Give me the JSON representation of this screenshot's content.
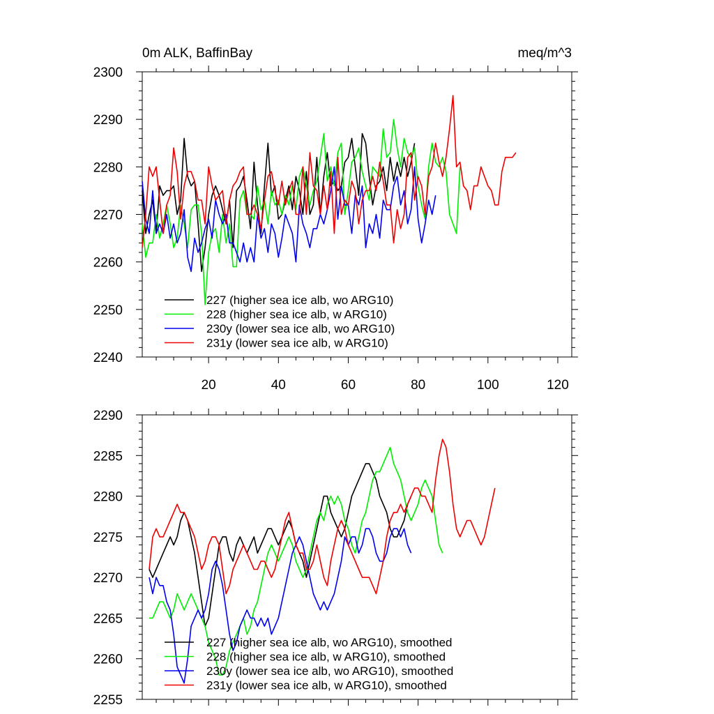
{
  "chart_data": [
    {
      "type": "line",
      "title_left": "0m ALK, BaffinBay",
      "title_right": "meq/m^3",
      "xlim": [
        1,
        124
      ],
      "ylim": [
        2240,
        2300
      ],
      "yticks": [
        2240,
        2250,
        2260,
        2270,
        2280,
        2290,
        2300
      ],
      "xticks": [
        20,
        40,
        60,
        80,
        100,
        120
      ],
      "xtick_labels_visible": true,
      "series": [
        {
          "name": "227 (higher sea ice alb, wo ARG10)",
          "color": "#000000",
          "x_start": 1,
          "values": [
            2275,
            2266,
            2270,
            2273,
            2266,
            2276,
            2274,
            2275,
            2275,
            2276,
            2270,
            2273,
            2286,
            2278,
            2276,
            2277,
            2268,
            2258,
            2263,
            2270,
            2274,
            2276,
            2274,
            2271,
            2268,
            2273,
            2263,
            2275,
            2276,
            2278,
            2273,
            2267,
            2281,
            2272,
            2266,
            2276,
            2285,
            2274,
            2276,
            2269,
            2270,
            2273,
            2276,
            2271,
            2278,
            2275,
            2270,
            2279,
            2270,
            2272,
            2282,
            2270,
            2278,
            2283,
            2276,
            2277,
            2275,
            2276,
            2281,
            2282,
            2286,
            2280,
            2274,
            2287,
            2285,
            2278,
            2272,
            2276,
            2277,
            2280,
            2275,
            2282,
            2277,
            2281,
            2278,
            2282,
            2278,
            2281,
            2285
          ]
        },
        {
          "name": "228 (higher sea ice alb, w ARG10)",
          "color": "#00ee00",
          "x_start": 1,
          "values": [
            2268,
            2261,
            2264,
            2264,
            2270,
            2265,
            2268,
            2272,
            2268,
            2263,
            2265,
            2272,
            2268,
            2263,
            2271,
            2272,
            2272,
            2266,
            2251,
            2262,
            2266,
            2267,
            2262,
            2270,
            2264,
            2268,
            2259,
            2259,
            2273,
            2275,
            2270,
            2270,
            2269,
            2276,
            2271,
            2273,
            2268,
            2275,
            2272,
            2273,
            2270,
            2274,
            2272,
            2276,
            2271,
            2278,
            2280,
            2276,
            2272,
            2275,
            2277,
            2282,
            2287,
            2277,
            2280,
            2276,
            2283,
            2285,
            2270,
            2275,
            2281,
            2282,
            2284,
            2279,
            2276,
            2273,
            2280,
            2279,
            2278,
            2288,
            2282,
            2283,
            2290,
            2284,
            2280,
            2286,
            2283,
            2282,
            2284,
            2276,
            2272,
            2269,
            2280,
            2285,
            2281,
            2280,
            2282,
            2279,
            2270,
            2268,
            2266,
            2280
          ]
        },
        {
          "name": "230y (lower sea ice alb, wo ARG10)",
          "color": "#0000ee",
          "x_start": 1,
          "values": [
            2277,
            2269,
            2266,
            2275,
            2266,
            2268,
            2266,
            2270,
            2265,
            2268,
            2264,
            2266,
            2271,
            2261,
            2258,
            2265,
            2262,
            2264,
            2267,
            2269,
            2265,
            2273,
            2270,
            2268,
            2270,
            2264,
            2264,
            2262,
            2260,
            2264,
            2260,
            2263,
            2260,
            2270,
            2265,
            2267,
            2262,
            2268,
            2266,
            2261,
            2265,
            2270,
            2268,
            2266,
            2260,
            2272,
            2268,
            2266,
            2263,
            2267,
            2267,
            2270,
            2268,
            2271,
            2275,
            2280,
            2269,
            2276,
            2272,
            2272,
            2266,
            2274,
            2272,
            2276,
            2263,
            2268,
            2266,
            2270,
            2265,
            2273,
            2271,
            2271,
            2276,
            2278,
            2272,
            2275,
            2268,
            2271,
            2280,
            2269,
            2264,
            2268,
            2273,
            2270,
            2274
          ]
        },
        {
          "name": "231y (lower sea ice alb, w ARG10)",
          "color": "#ee0000",
          "x_start": 1,
          "values": [
            2263,
            2270,
            2280,
            2278,
            2280,
            2273,
            2266,
            2272,
            2274,
            2284,
            2279,
            2269,
            2276,
            2279,
            2279,
            2277,
            2273,
            2273,
            2268,
            2280,
            2276,
            2273,
            2274,
            2275,
            2268,
            2273,
            2276,
            2277,
            2279,
            2280,
            2270,
            2270,
            2272,
            2270,
            2267,
            2273,
            2278,
            2279,
            2275,
            2272,
            2277,
            2272,
            2275,
            2277,
            2270,
            2270,
            2280,
            2270,
            2283,
            2276,
            2275,
            2270,
            2276,
            2271,
            2279,
            2266,
            2282,
            2270,
            2273,
            2272,
            2277,
            2275,
            2268,
            2273,
            2275,
            2275,
            2278,
            2275,
            2281,
            2277,
            2272,
            2272,
            2264,
            2271,
            2267,
            2270,
            2282,
            2283,
            2273,
            2278,
            2276,
            2270,
            2278,
            2280,
            2285,
            2281,
            2278,
            2282,
            2288,
            2295,
            2280,
            2281,
            2276,
            2275,
            2271,
            2276,
            2276,
            2280,
            2278,
            2276,
            2275,
            2272,
            2272,
            2279,
            2282,
            2282,
            2282,
            2283
          ]
        }
      ],
      "legend": {
        "placement": "lower-left"
      }
    },
    {
      "type": "line",
      "xlim": [
        1,
        124
      ],
      "ylim": [
        2255,
        2290
      ],
      "yticks": [
        2255,
        2260,
        2265,
        2270,
        2275,
        2280,
        2285,
        2290
      ],
      "xticks": [
        20,
        40,
        60,
        80,
        100,
        120
      ],
      "xtick_labels_visible": false,
      "series": [
        {
          "name": "227 (higher sea ice alb, wo ARG10), smoothed",
          "color": "#000000",
          "x_start": 3,
          "values": [
            2271,
            2270,
            2271,
            2272,
            2273,
            2274,
            2275,
            2274,
            2275,
            2277,
            2278,
            2277,
            2275,
            2273,
            2270,
            2267,
            2264,
            2265,
            2268,
            2271,
            2274,
            2275,
            2275,
            2273,
            2272,
            2274,
            2275,
            2274,
            2273,
            2274,
            2275,
            2273,
            2274,
            2275,
            2276,
            2276,
            2275,
            2274,
            2275,
            2276,
            2277,
            2276,
            2274,
            2273,
            2272,
            2270,
            2272,
            2274,
            2276,
            2278,
            2280,
            2280,
            2278,
            2277,
            2276,
            2275,
            2276,
            2278,
            2280,
            2281,
            2282,
            2283,
            2284,
            2284,
            2283,
            2282,
            2280,
            2279,
            2278,
            2276,
            2275,
            2275,
            2276,
            2277,
            2279,
            2280
          ]
        },
        {
          "name": "228 (higher sea ice alb, w ARG10), smoothed",
          "color": "#00ee00",
          "x_start": 3,
          "values": [
            2265,
            2265,
            2266,
            2267,
            2267,
            2266,
            2265,
            2266,
            2268,
            2267,
            2266,
            2267,
            2268,
            2267,
            2266,
            2265,
            2264,
            2262,
            2261,
            2260,
            2258,
            2258,
            2259,
            2261,
            2262,
            2263,
            2264,
            2265,
            2263,
            2264,
            2266,
            2267,
            2269,
            2271,
            2273,
            2274,
            2273,
            2272,
            2273,
            2274,
            2275,
            2274,
            2272,
            2271,
            2270,
            2271,
            2273,
            2275,
            2277,
            2278,
            2277,
            2279,
            2280,
            2279,
            2280,
            2279,
            2277,
            2276,
            2274,
            2273,
            2275,
            2277,
            2278,
            2280,
            2282,
            2283,
            2283,
            2284,
            2285,
            2286,
            2284,
            2283,
            2282,
            2280,
            2278,
            2277,
            2278,
            2279,
            2281,
            2282,
            2281,
            2280,
            2277,
            2274,
            2273
          ]
        },
        {
          "name": "230y (lower sea ice alb, wo ARG10), smoothed",
          "color": "#0000ee",
          "x_start": 3,
          "values": [
            2270,
            2268,
            2270,
            2269,
            2269,
            2267,
            2266,
            2263,
            2259,
            2258,
            2257,
            2260,
            2264,
            2265,
            2266,
            2265,
            2266,
            2268,
            2271,
            2272,
            2271,
            2269,
            2266,
            2263,
            2261,
            2262,
            2264,
            2265,
            2266,
            2265,
            2265,
            2264,
            2265,
            2264,
            2265,
            2263,
            2264,
            2265,
            2267,
            2269,
            2271,
            2273,
            2274,
            2275,
            2274,
            2272,
            2270,
            2268,
            2267,
            2266,
            2267,
            2266,
            2267,
            2268,
            2270,
            2272,
            2275,
            2274,
            2275,
            2275,
            2273,
            2274,
            2276,
            2276,
            2275,
            2273,
            2272,
            2272,
            2273,
            2275,
            2276,
            2276,
            2275,
            2276,
            2274,
            2273
          ]
        },
        {
          "name": "231y (lower sea ice alb, w ARG10), smoothed",
          "color": "#ee0000",
          "x_start": 3,
          "values": [
            2271,
            2275,
            2276,
            2275,
            2275,
            2276,
            2277,
            2278,
            2279,
            2278,
            2278,
            2277,
            2276,
            2275,
            2273,
            2271,
            2272,
            2274,
            2275,
            2275,
            2274,
            2271,
            2268,
            2269,
            2271,
            2272,
            2273,
            2274,
            2273,
            2272,
            2271,
            2271,
            2272,
            2272,
            2271,
            2270,
            2271,
            2273,
            2275,
            2277,
            2278,
            2276,
            2274,
            2273,
            2273,
            2271,
            2271,
            2272,
            2274,
            2272,
            2270,
            2269,
            2272,
            2274,
            2276,
            2277,
            2276,
            2274,
            2273,
            2272,
            2271,
            2270,
            2270,
            2270,
            2269,
            2268,
            2270,
            2272,
            2275,
            2277,
            2278,
            2278,
            2279,
            2278,
            2279,
            2280,
            2281,
            2281,
            2280,
            2280,
            2279,
            2278,
            2282,
            2285,
            2287,
            2286,
            2283,
            2279,
            2276,
            2275,
            2276,
            2277,
            2277,
            2276,
            2275,
            2274,
            2275,
            2277,
            2279,
            2281
          ]
        }
      ],
      "legend": {
        "placement": "lower-left"
      }
    }
  ]
}
